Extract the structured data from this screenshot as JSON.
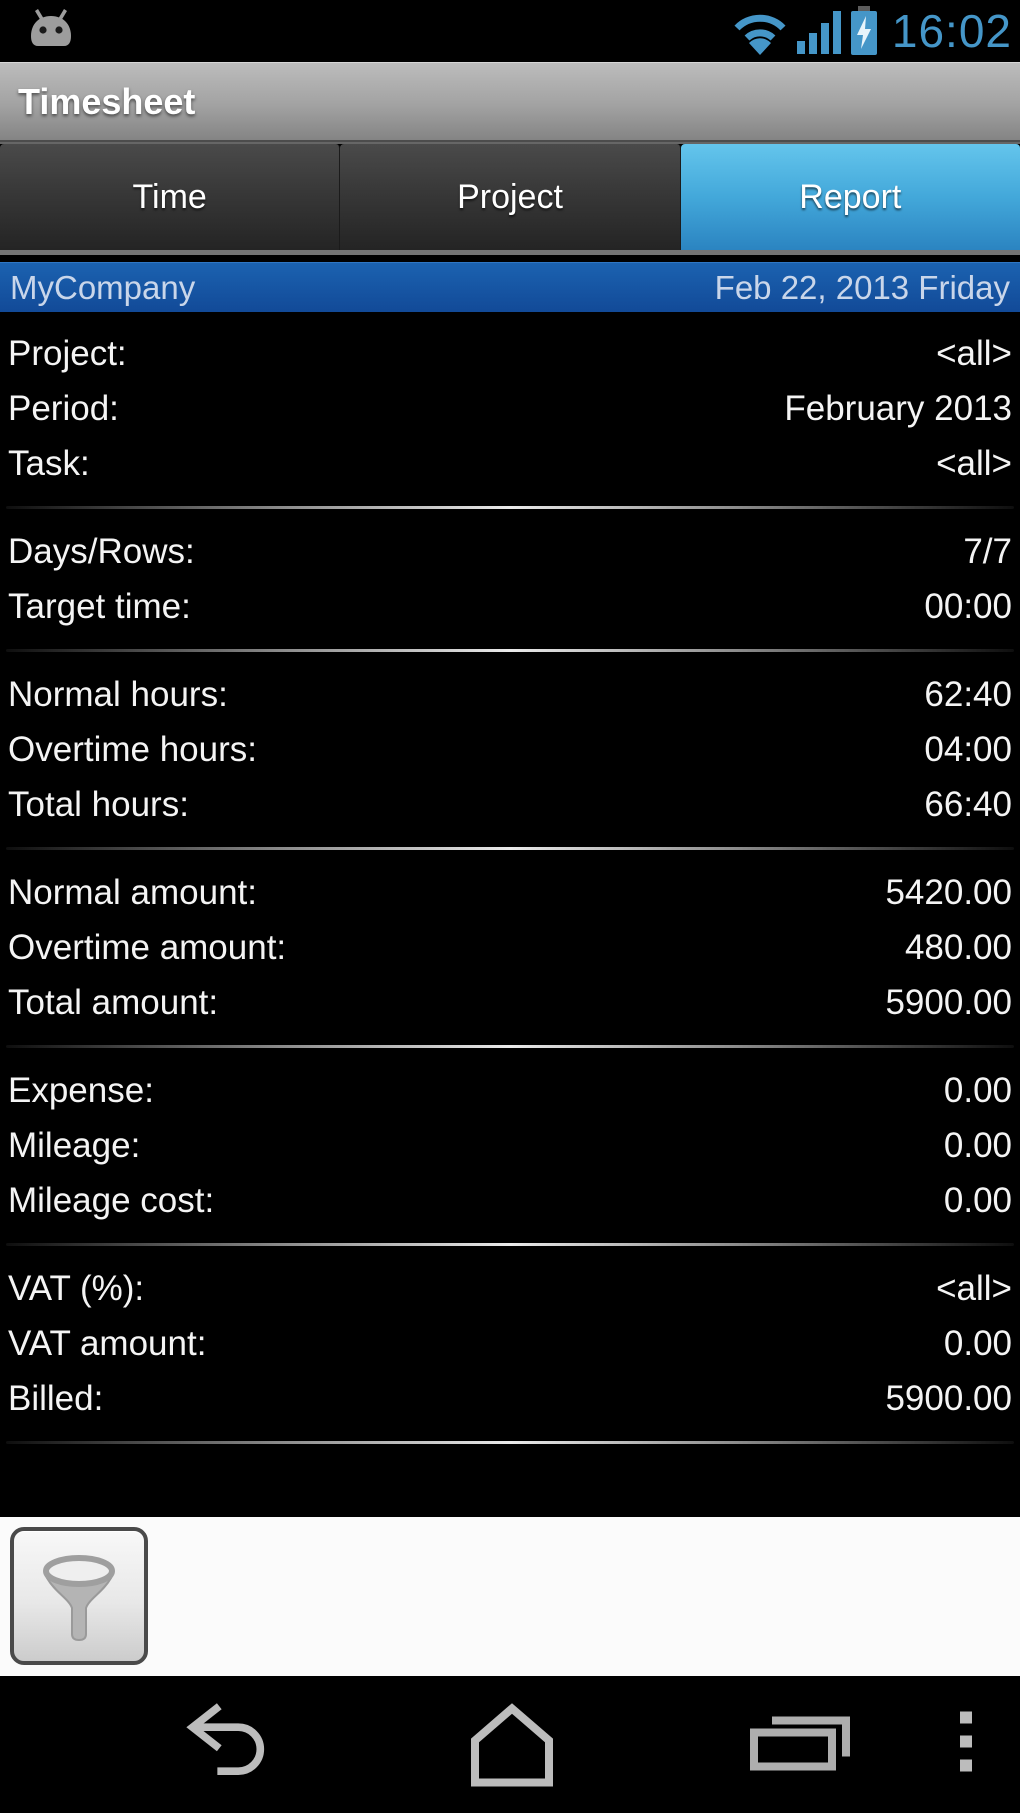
{
  "status_bar": {
    "time": "16:02",
    "icons": [
      "android-robot",
      "wifi",
      "signal-strength",
      "battery-charging"
    ],
    "icon_color": "#4596c8"
  },
  "title_bar": {
    "title": "Timesheet"
  },
  "tabs": [
    {
      "label": "Time",
      "selected": false
    },
    {
      "label": "Project",
      "selected": false
    },
    {
      "label": "Report",
      "selected": true
    }
  ],
  "report": {
    "header": {
      "company": "MyCompany",
      "date": "Feb 22, 2013 Friday"
    },
    "sections": [
      {
        "rows": [
          {
            "label": "Project:",
            "value": "<all>"
          },
          {
            "label": "Period:",
            "value": "February 2013"
          },
          {
            "label": "Task:",
            "value": "<all>"
          }
        ]
      },
      {
        "rows": [
          {
            "label": "Days/Rows:",
            "value": "7/7"
          },
          {
            "label": "Target time:",
            "value": "00:00"
          }
        ]
      },
      {
        "rows": [
          {
            "label": "Normal hours:",
            "value": "62:40"
          },
          {
            "label": "Overtime hours:",
            "value": "04:00"
          },
          {
            "label": "Total hours:",
            "value": "66:40"
          }
        ]
      },
      {
        "rows": [
          {
            "label": "Normal amount:",
            "value": "5420.00"
          },
          {
            "label": "Overtime amount:",
            "value": "480.00"
          },
          {
            "label": "Total amount:",
            "value": "5900.00"
          }
        ]
      },
      {
        "rows": [
          {
            "label": "Expense:",
            "value": "0.00"
          },
          {
            "label": "Mileage:",
            "value": "0.00"
          },
          {
            "label": "Mileage cost:",
            "value": "0.00"
          }
        ]
      },
      {
        "rows": [
          {
            "label": "VAT (%):",
            "value": "<all>"
          },
          {
            "label": "VAT amount:",
            "value": "0.00"
          },
          {
            "label": "Billed:",
            "value": "5900.00"
          }
        ]
      }
    ]
  },
  "toolbar": {
    "filter_icon": "funnel-icon"
  },
  "nav_bar": {
    "icons": [
      "back",
      "home",
      "recents",
      "menu-overflow"
    ]
  },
  "colors": {
    "selected_tab_blue": "#43a8da",
    "header_row_blue": "#1557a6",
    "status_icon_blue": "#4596c8",
    "background": "#000000",
    "toolbar_background": "#fbfbfb"
  }
}
